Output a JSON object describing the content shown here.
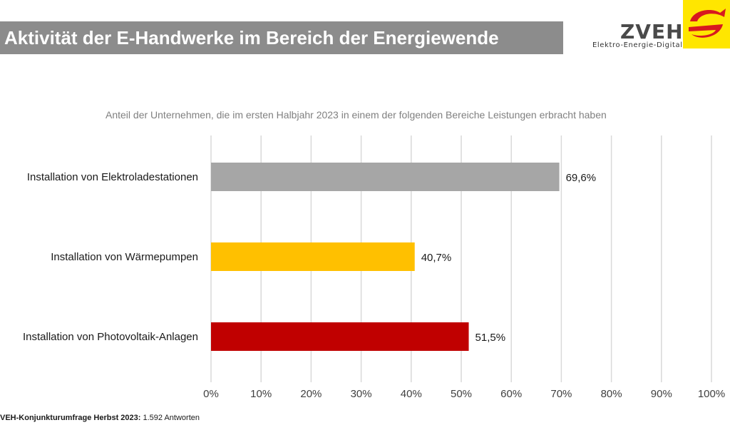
{
  "header": {
    "title": "Aktivität der E-Handwerke im Bereich der Energiewende",
    "logo_name": "ZVEH",
    "logo_tagline": "Elektro-Energie-Digital",
    "logo_color": "#ffe600",
    "logo_icon": "e-mark-icon"
  },
  "footnote": {
    "source_label": "VEH-Konjunkturumfrage Herbst 2023:",
    "source_detail": " 1.592 Antworten"
  },
  "chart_data": {
    "type": "bar",
    "orientation": "horizontal",
    "title": "Anteil der Unternehmen, die im ersten Halbjahr 2023 in einem der folgenden Bereiche Leistungen erbracht haben",
    "categories": [
      "Installation von Elektroladestationen",
      "Installation von Wärmepumpen",
      "Installation von Photovoltaik-Anlagen"
    ],
    "values": [
      69.6,
      40.7,
      51.5
    ],
    "value_labels": [
      "69,6%",
      "40,7%",
      "51,5%"
    ],
    "colors": [
      "#a6a6a6",
      "#ffc000",
      "#c00000"
    ],
    "xlim": [
      0,
      100
    ],
    "xticks": [
      "0%",
      "10%",
      "20%",
      "30%",
      "40%",
      "50%",
      "60%",
      "70%",
      "80%",
      "90%",
      "100%"
    ],
    "grid": true,
    "legend": "none"
  }
}
